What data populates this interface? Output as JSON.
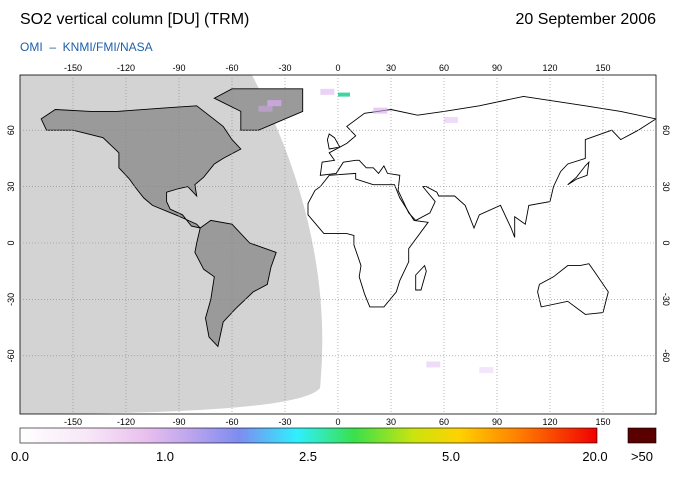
{
  "header": {
    "title": "SO2 vertical column [DU] (TRM)",
    "date": "20 September 2006",
    "credit": "OMI  –  KNMI/FMI/NASA"
  },
  "map": {
    "lon_ticks": [
      -150,
      -120,
      -90,
      -60,
      -30,
      0,
      30,
      60,
      90,
      120,
      150
    ],
    "lat_ticks": [
      60,
      30,
      0,
      -30,
      -60
    ]
  },
  "colorbar": {
    "labels": [
      "0.0",
      "1.0",
      "2.5",
      "5.0",
      "20.0"
    ],
    "overflow_label": ">50"
  }
}
